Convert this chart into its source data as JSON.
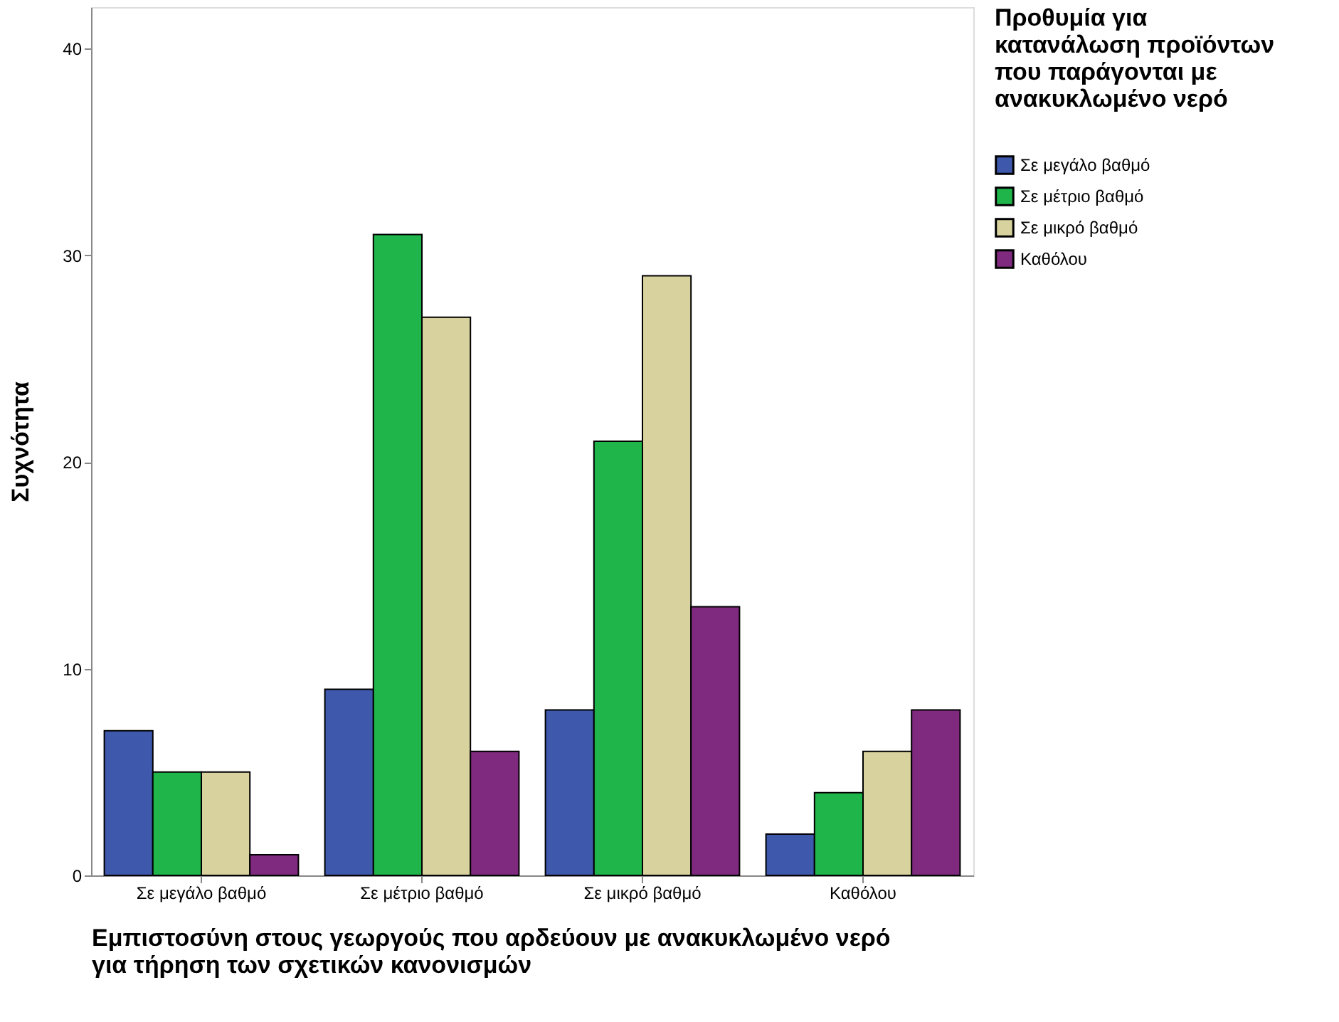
{
  "chart_data": {
    "type": "bar",
    "xlabel": "Εμπιστοσύνη στους γεωργούς που αρδεύουν με ανακυκλωμένο νερό για τήρηση των σχετικών κανονισμών",
    "ylabel": "Συχνότητα",
    "legend_title": "Προθυμία για κατανάλωση προϊόντων που παράγονται με ανακυκλωμένο νερό",
    "categories": [
      "Σε μεγάλο βαθμό",
      "Σε μέτριο βαθμό",
      "Σε μικρό βαθμό",
      "Καθόλου"
    ],
    "series": [
      {
        "name": "Σε μεγάλο βαθμό",
        "color": "#3e58ac",
        "values": [
          7,
          9,
          8,
          2
        ]
      },
      {
        "name": "Σε μέτριο βαθμό",
        "color": "#1fb54a",
        "values": [
          5,
          31,
          21,
          4
        ]
      },
      {
        "name": "Σε μικρό βαθμό",
        "color": "#d8d39e",
        "values": [
          5,
          27,
          29,
          6
        ]
      },
      {
        "name": "Καθόλου",
        "color": "#7f2a7e",
        "values": [
          1,
          6,
          13,
          8
        ]
      }
    ],
    "ylim": [
      0,
      42
    ],
    "yticks": [
      0,
      10,
      20,
      30,
      40
    ],
    "grid": false,
    "legend": "right"
  }
}
